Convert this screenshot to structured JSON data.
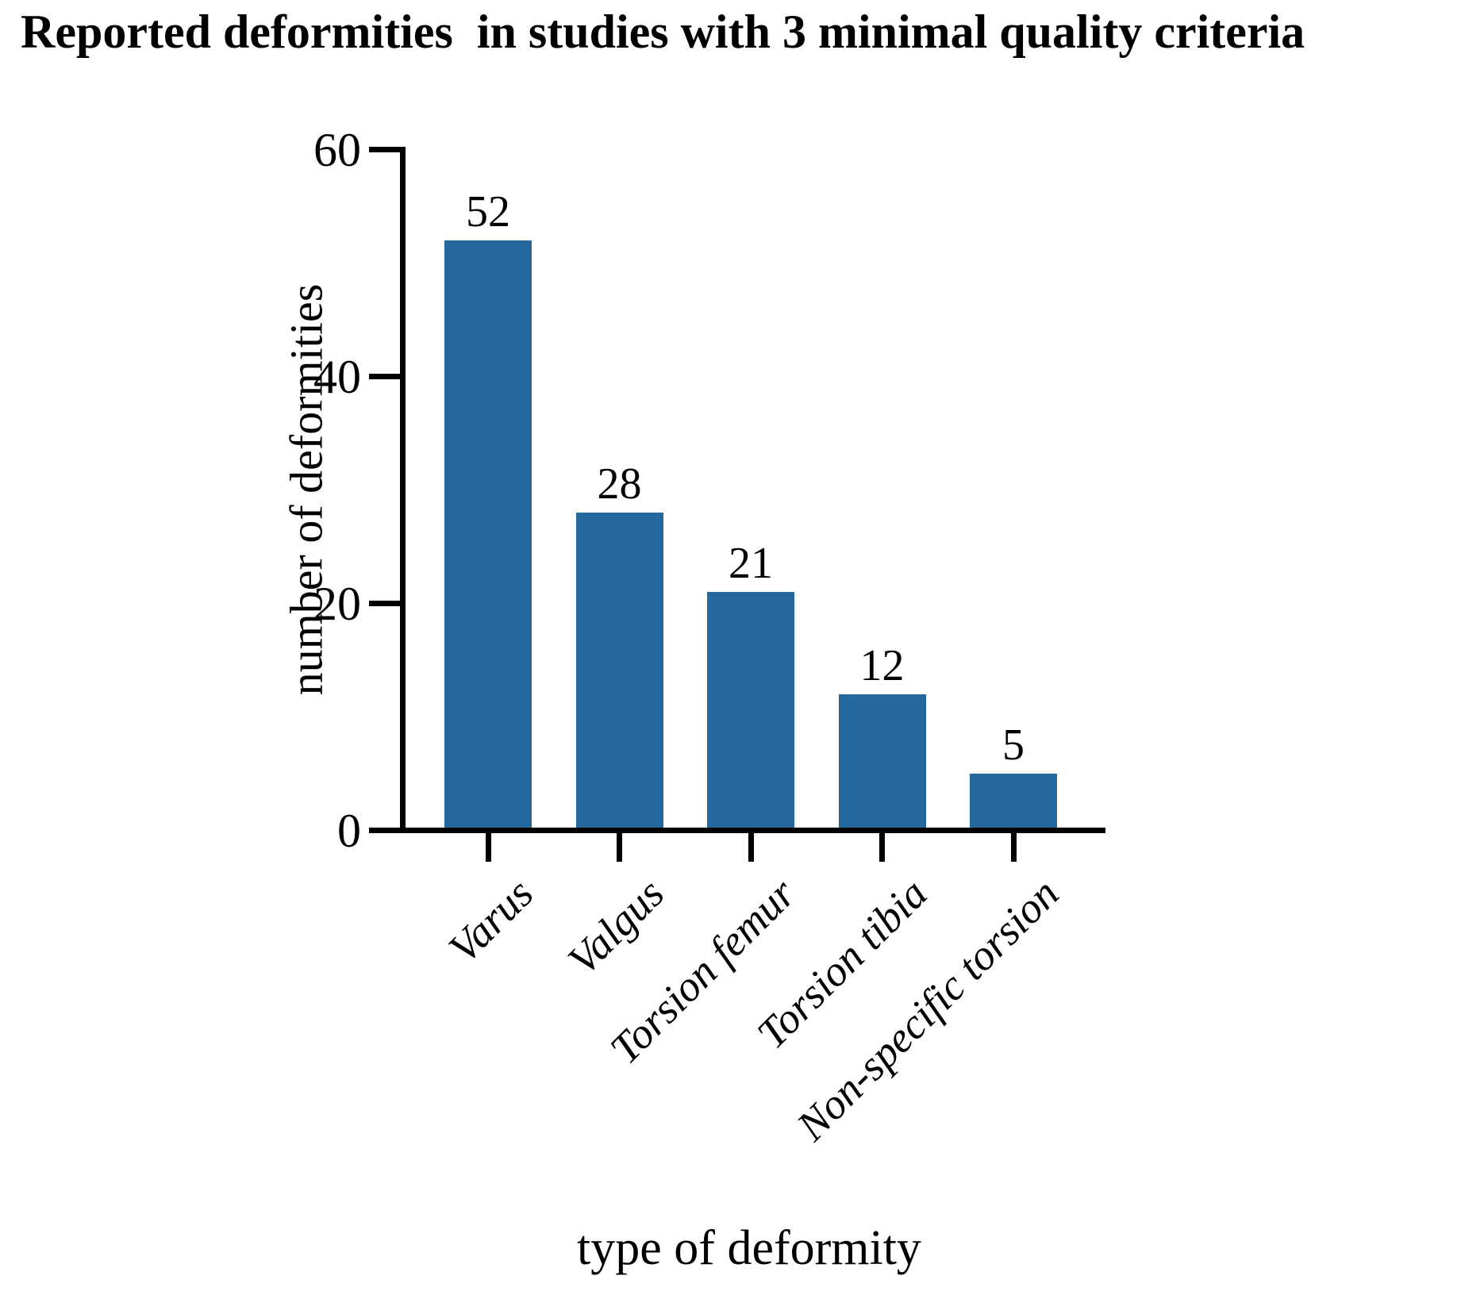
{
  "chart_data": {
    "type": "bar",
    "title": "Reported deformities  in studies with 3 minimal quality criteria",
    "categories": [
      "Varus",
      "Valgus",
      "Torsion femur",
      "Torsion tibia",
      "Non-specific torsion"
    ],
    "values": [
      52,
      28,
      21,
      12,
      5
    ],
    "value_labels": [
      "52",
      "28",
      "21",
      "12",
      "5"
    ],
    "xlabel": "type of deformity",
    "ylabel": "number of deformities",
    "ylim": [
      0,
      60
    ],
    "yticks": [
      0,
      20,
      40,
      60
    ],
    "bar_color": "#25689b",
    "axis_color": "#000000",
    "text_color": "#000000",
    "grid": false,
    "legend_position": "none"
  }
}
